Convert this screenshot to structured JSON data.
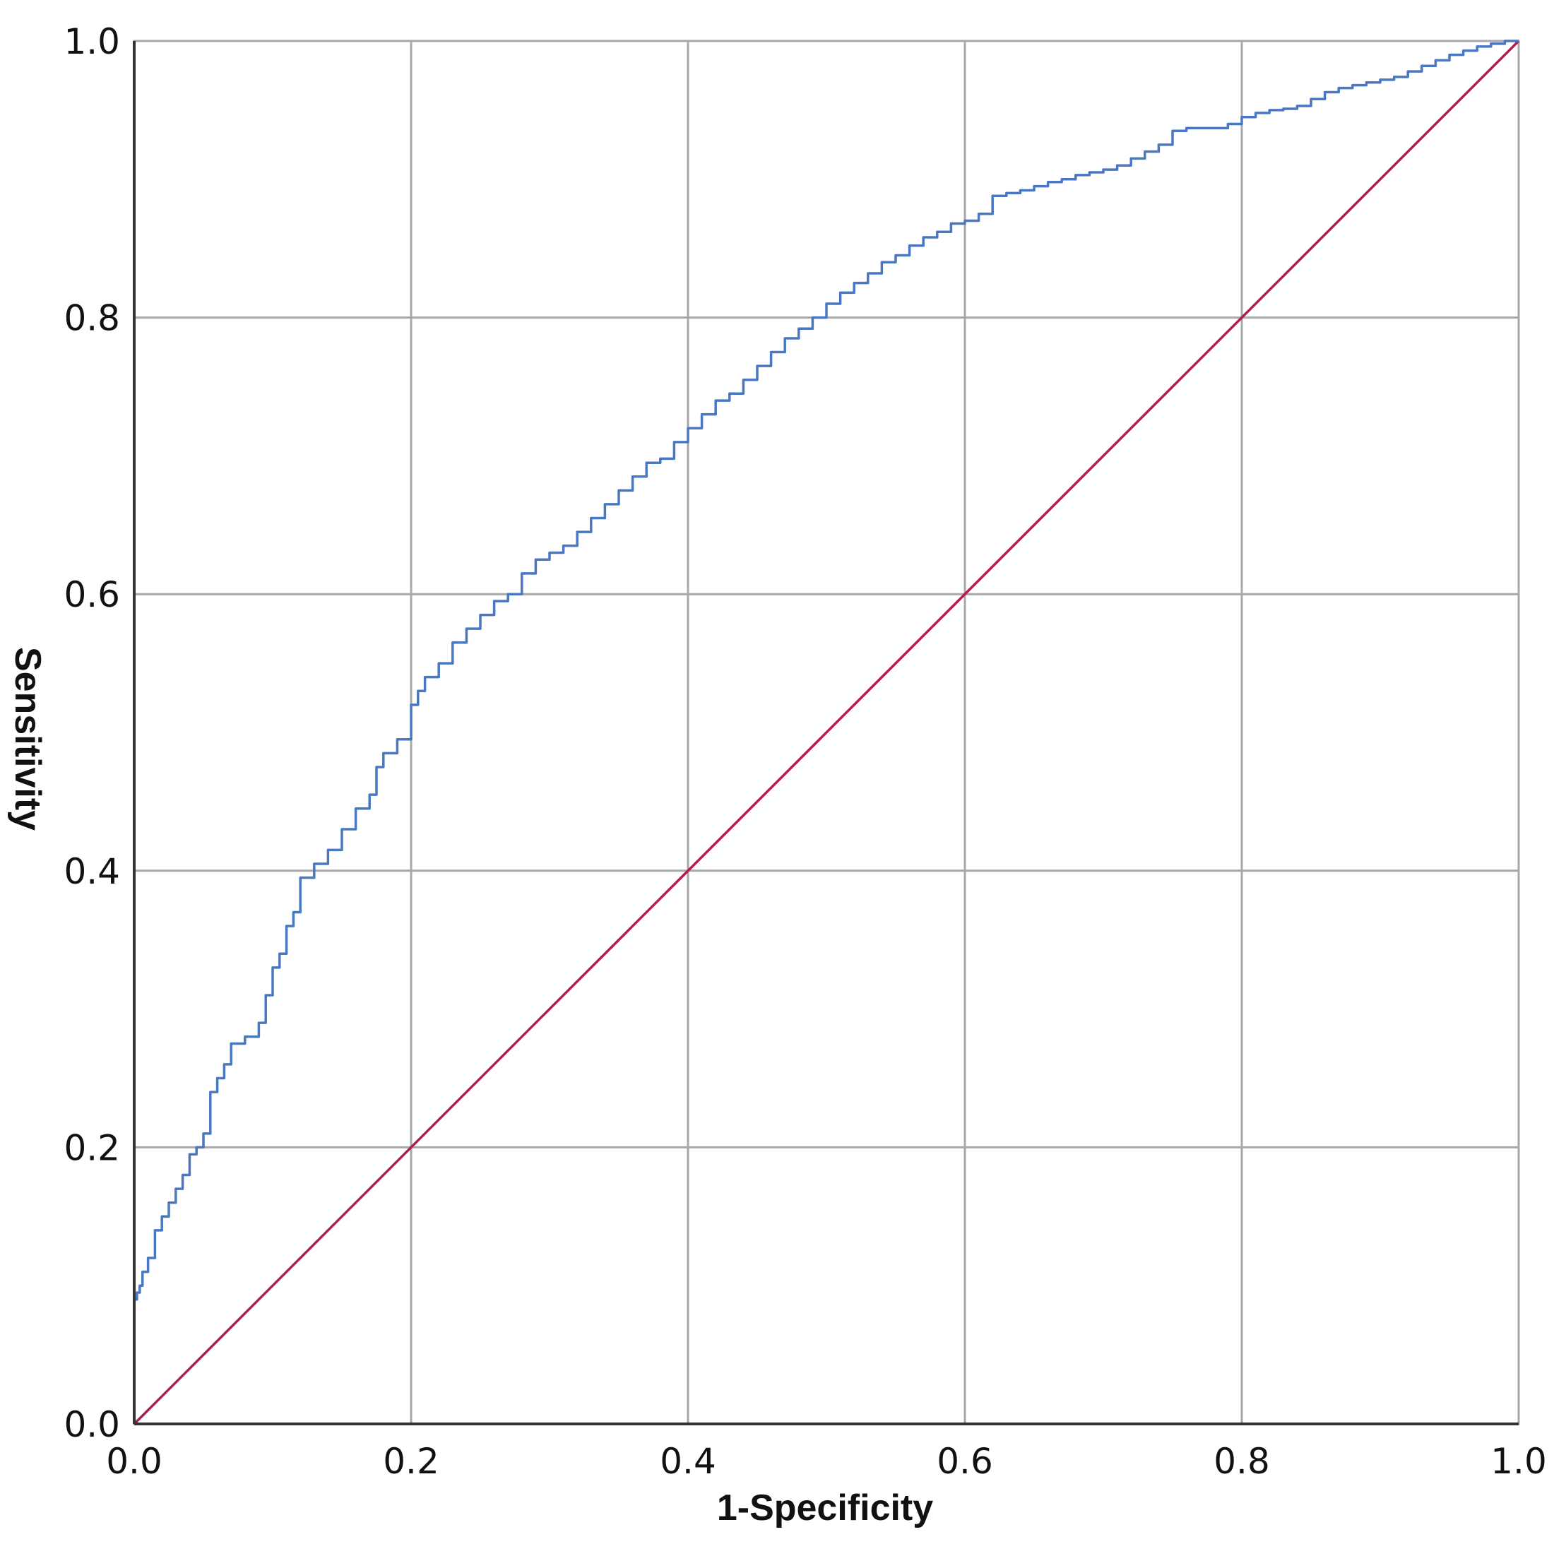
{
  "chart_data": {
    "type": "line",
    "title": "",
    "xlabel": "1-Specificity",
    "ylabel": "Sensitivity",
    "xlim": [
      0,
      1
    ],
    "ylim": [
      0,
      1
    ],
    "x_ticks": [
      "0.0",
      "0.2",
      "0.4",
      "0.6",
      "0.8",
      "1.0"
    ],
    "y_ticks": [
      "0.0",
      "0.2",
      "0.4",
      "0.6",
      "0.8",
      "1.0"
    ],
    "grid": true,
    "legend": "none",
    "series": [
      {
        "color": "#4a77c2",
        "step": true,
        "x": [
          0.0,
          0.0,
          0.002,
          0.004,
          0.006,
          0.01,
          0.015,
          0.02,
          0.025,
          0.03,
          0.035,
          0.04,
          0.045,
          0.05,
          0.055,
          0.06,
          0.065,
          0.07,
          0.08,
          0.09,
          0.095,
          0.1,
          0.105,
          0.11,
          0.115,
          0.12,
          0.13,
          0.14,
          0.15,
          0.16,
          0.17,
          0.175,
          0.18,
          0.19,
          0.2,
          0.205,
          0.21,
          0.22,
          0.23,
          0.24,
          0.25,
          0.26,
          0.27,
          0.28,
          0.29,
          0.3,
          0.31,
          0.32,
          0.33,
          0.34,
          0.35,
          0.36,
          0.37,
          0.38,
          0.39,
          0.4,
          0.41,
          0.42,
          0.43,
          0.44,
          0.45,
          0.46,
          0.47,
          0.48,
          0.49,
          0.5,
          0.51,
          0.52,
          0.53,
          0.54,
          0.55,
          0.56,
          0.57,
          0.58,
          0.59,
          0.6,
          0.61,
          0.62,
          0.63,
          0.64,
          0.65,
          0.66,
          0.67,
          0.68,
          0.69,
          0.7,
          0.71,
          0.72,
          0.73,
          0.74,
          0.75,
          0.76,
          0.77,
          0.78,
          0.79,
          0.8,
          0.81,
          0.82,
          0.83,
          0.84,
          0.85,
          0.86,
          0.87,
          0.88,
          0.89,
          0.9,
          0.91,
          0.92,
          0.93,
          0.94,
          0.95,
          0.96,
          0.97,
          0.98,
          0.99,
          1.0
        ],
        "y": [
          0.0,
          0.07,
          0.09,
          0.095,
          0.1,
          0.11,
          0.12,
          0.14,
          0.15,
          0.16,
          0.17,
          0.18,
          0.195,
          0.2,
          0.21,
          0.24,
          0.25,
          0.26,
          0.275,
          0.28,
          0.29,
          0.31,
          0.33,
          0.34,
          0.36,
          0.37,
          0.395,
          0.405,
          0.415,
          0.43,
          0.445,
          0.455,
          0.475,
          0.485,
          0.495,
          0.52,
          0.53,
          0.54,
          0.55,
          0.565,
          0.575,
          0.585,
          0.595,
          0.6,
          0.615,
          0.625,
          0.63,
          0.635,
          0.645,
          0.655,
          0.665,
          0.675,
          0.685,
          0.695,
          0.698,
          0.71,
          0.72,
          0.73,
          0.74,
          0.745,
          0.755,
          0.765,
          0.775,
          0.785,
          0.792,
          0.8,
          0.81,
          0.818,
          0.825,
          0.832,
          0.84,
          0.845,
          0.852,
          0.858,
          0.862,
          0.868,
          0.87,
          0.875,
          0.888,
          0.89,
          0.892,
          0.895,
          0.898,
          0.9,
          0.903,
          0.905,
          0.907,
          0.91,
          0.915,
          0.92,
          0.925,
          0.935,
          0.937,
          0.937,
          0.937,
          0.94,
          0.945,
          0.948,
          0.95,
          0.951,
          0.953,
          0.958,
          0.963,
          0.966,
          0.968,
          0.97,
          0.972,
          0.974,
          0.978,
          0.982,
          0.986,
          0.99,
          0.993,
          0.996,
          0.998,
          1.0
        ]
      },
      {
        "color": "#b01e4f",
        "x": [
          0,
          1
        ],
        "y": [
          0,
          1
        ]
      }
    ]
  }
}
